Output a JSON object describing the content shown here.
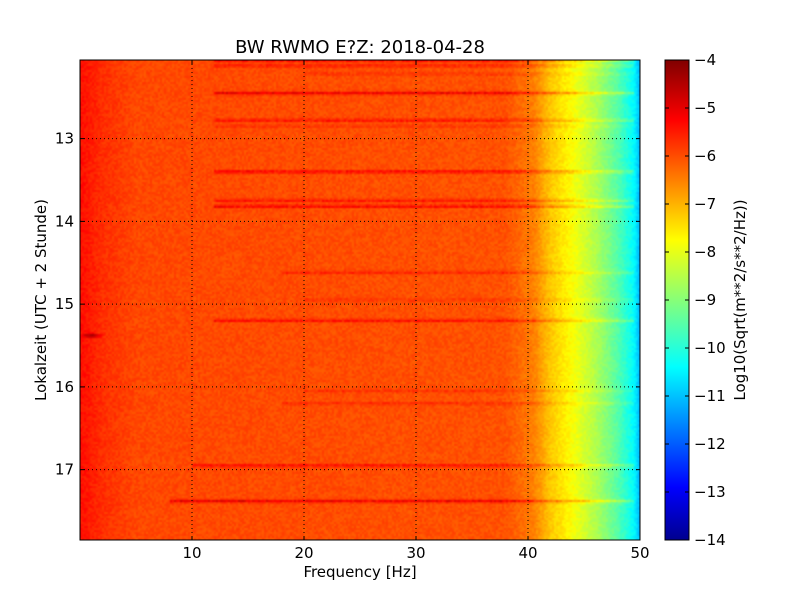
{
  "chart_data": {
    "type": "heatmap",
    "title": "BW RWMO E?Z: 2018-04-28",
    "xlabel": "Frequency [Hz]",
    "ylabel": "Lokalzeit (UTC + 2 Stunde)",
    "xlim": [
      0,
      50
    ],
    "ylim": [
      12.05,
      17.85
    ],
    "y_inverted": true,
    "x_ticks": [
      10,
      20,
      30,
      40,
      50
    ],
    "y_ticks": [
      13,
      14,
      15,
      16,
      17
    ],
    "grid": true,
    "colormap": "jet",
    "colorbar": {
      "label": "Log10(Sqrt(m**2/s**2/Hz))",
      "range": [
        -14,
        -4
      ],
      "ticks": [
        -4,
        -5,
        -6,
        -7,
        -8,
        -9,
        -10,
        -11,
        -12,
        -13,
        -14
      ]
    },
    "base_level": -6.0,
    "high_freq_rolloff": [
      {
        "f": 0.2,
        "v": -5.4
      },
      {
        "f": 2,
        "v": -5.7
      },
      {
        "f": 5,
        "v": -5.95
      },
      {
        "f": 38,
        "v": -6.05
      },
      {
        "f": 40.5,
        "v": -6.5
      },
      {
        "f": 42,
        "v": -7.2
      },
      {
        "f": 44,
        "v": -7.8
      },
      {
        "f": 46,
        "v": -8.5
      },
      {
        "f": 48,
        "v": -9.4
      },
      {
        "f": 49.5,
        "v": -10.3
      },
      {
        "f": 50,
        "v": -11.0
      }
    ],
    "bands": [
      {
        "t": 12.06,
        "v": -5.2,
        "f_start": 12
      },
      {
        "t": 12.12,
        "v": -5.3,
        "f_start": 12
      },
      {
        "t": 12.22,
        "v": -5.6,
        "f_start": 20
      },
      {
        "t": 12.45,
        "v": -4.8,
        "f_start": 12
      },
      {
        "t": 12.78,
        "v": -5.1,
        "f_start": 12
      },
      {
        "t": 12.85,
        "v": -5.6,
        "f_start": 12
      },
      {
        "t": 13.4,
        "v": -4.9,
        "f_start": 12
      },
      {
        "t": 13.75,
        "v": -5.2,
        "f_start": 12
      },
      {
        "t": 13.82,
        "v": -4.9,
        "f_start": 12
      },
      {
        "t": 14.62,
        "v": -5.4,
        "f_start": 18
      },
      {
        "t": 14.95,
        "v": -5.6,
        "f_start": 20
      },
      {
        "t": 15.2,
        "v": -5.1,
        "f_start": 12
      },
      {
        "t": 16.05,
        "v": -5.6,
        "f_start": 20
      },
      {
        "t": 16.2,
        "v": -5.5,
        "f_start": 18
      },
      {
        "t": 16.95,
        "v": -5.1,
        "f_start": 10
      },
      {
        "t": 17.38,
        "v": -4.8,
        "f_start": 8
      }
    ],
    "events": [
      {
        "f": 1.0,
        "t": 15.38,
        "v": -4.2
      }
    ]
  }
}
